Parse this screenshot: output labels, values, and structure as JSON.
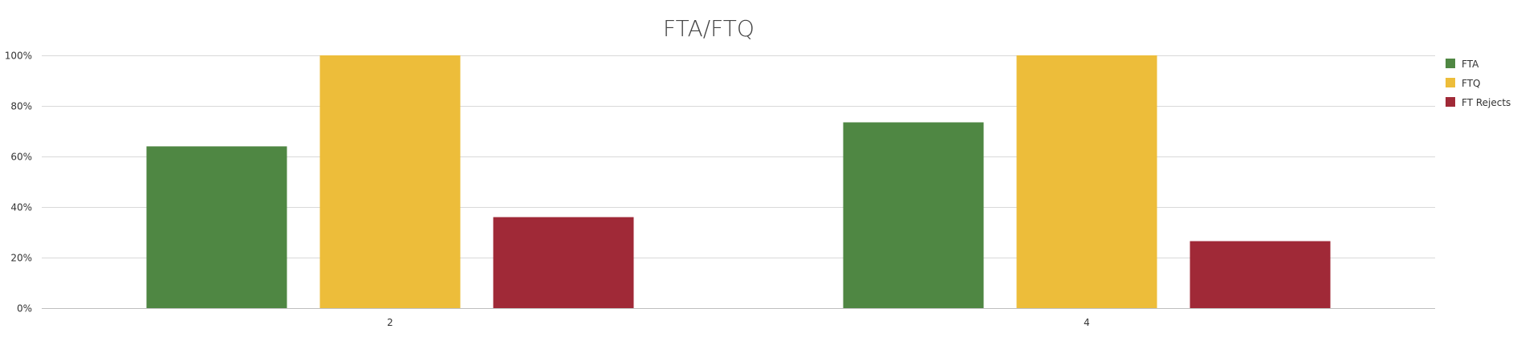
{
  "chart_data": {
    "type": "bar",
    "title": "FTA/FTQ",
    "xlabel": "",
    "ylabel": "",
    "categories": [
      "2",
      "4"
    ],
    "series": [
      {
        "name": "FTA",
        "color": "#4f8743",
        "values": [
          64,
          73.5
        ]
      },
      {
        "name": "FTQ",
        "color": "#edbd3a",
        "values": [
          100,
          100
        ]
      },
      {
        "name": "FT Rejects",
        "color": "#a02937",
        "values": [
          36,
          26.5
        ]
      }
    ],
    "ylim": [
      0,
      100
    ],
    "yticks": [
      {
        "value": 0,
        "label": "0%"
      },
      {
        "value": 20,
        "label": "20%"
      },
      {
        "value": 40,
        "label": "40%"
      },
      {
        "value": 60,
        "label": "60%"
      },
      {
        "value": 80,
        "label": "80%"
      },
      {
        "value": 100,
        "label": "100%"
      }
    ],
    "grid": true,
    "legend": "top-right"
  }
}
